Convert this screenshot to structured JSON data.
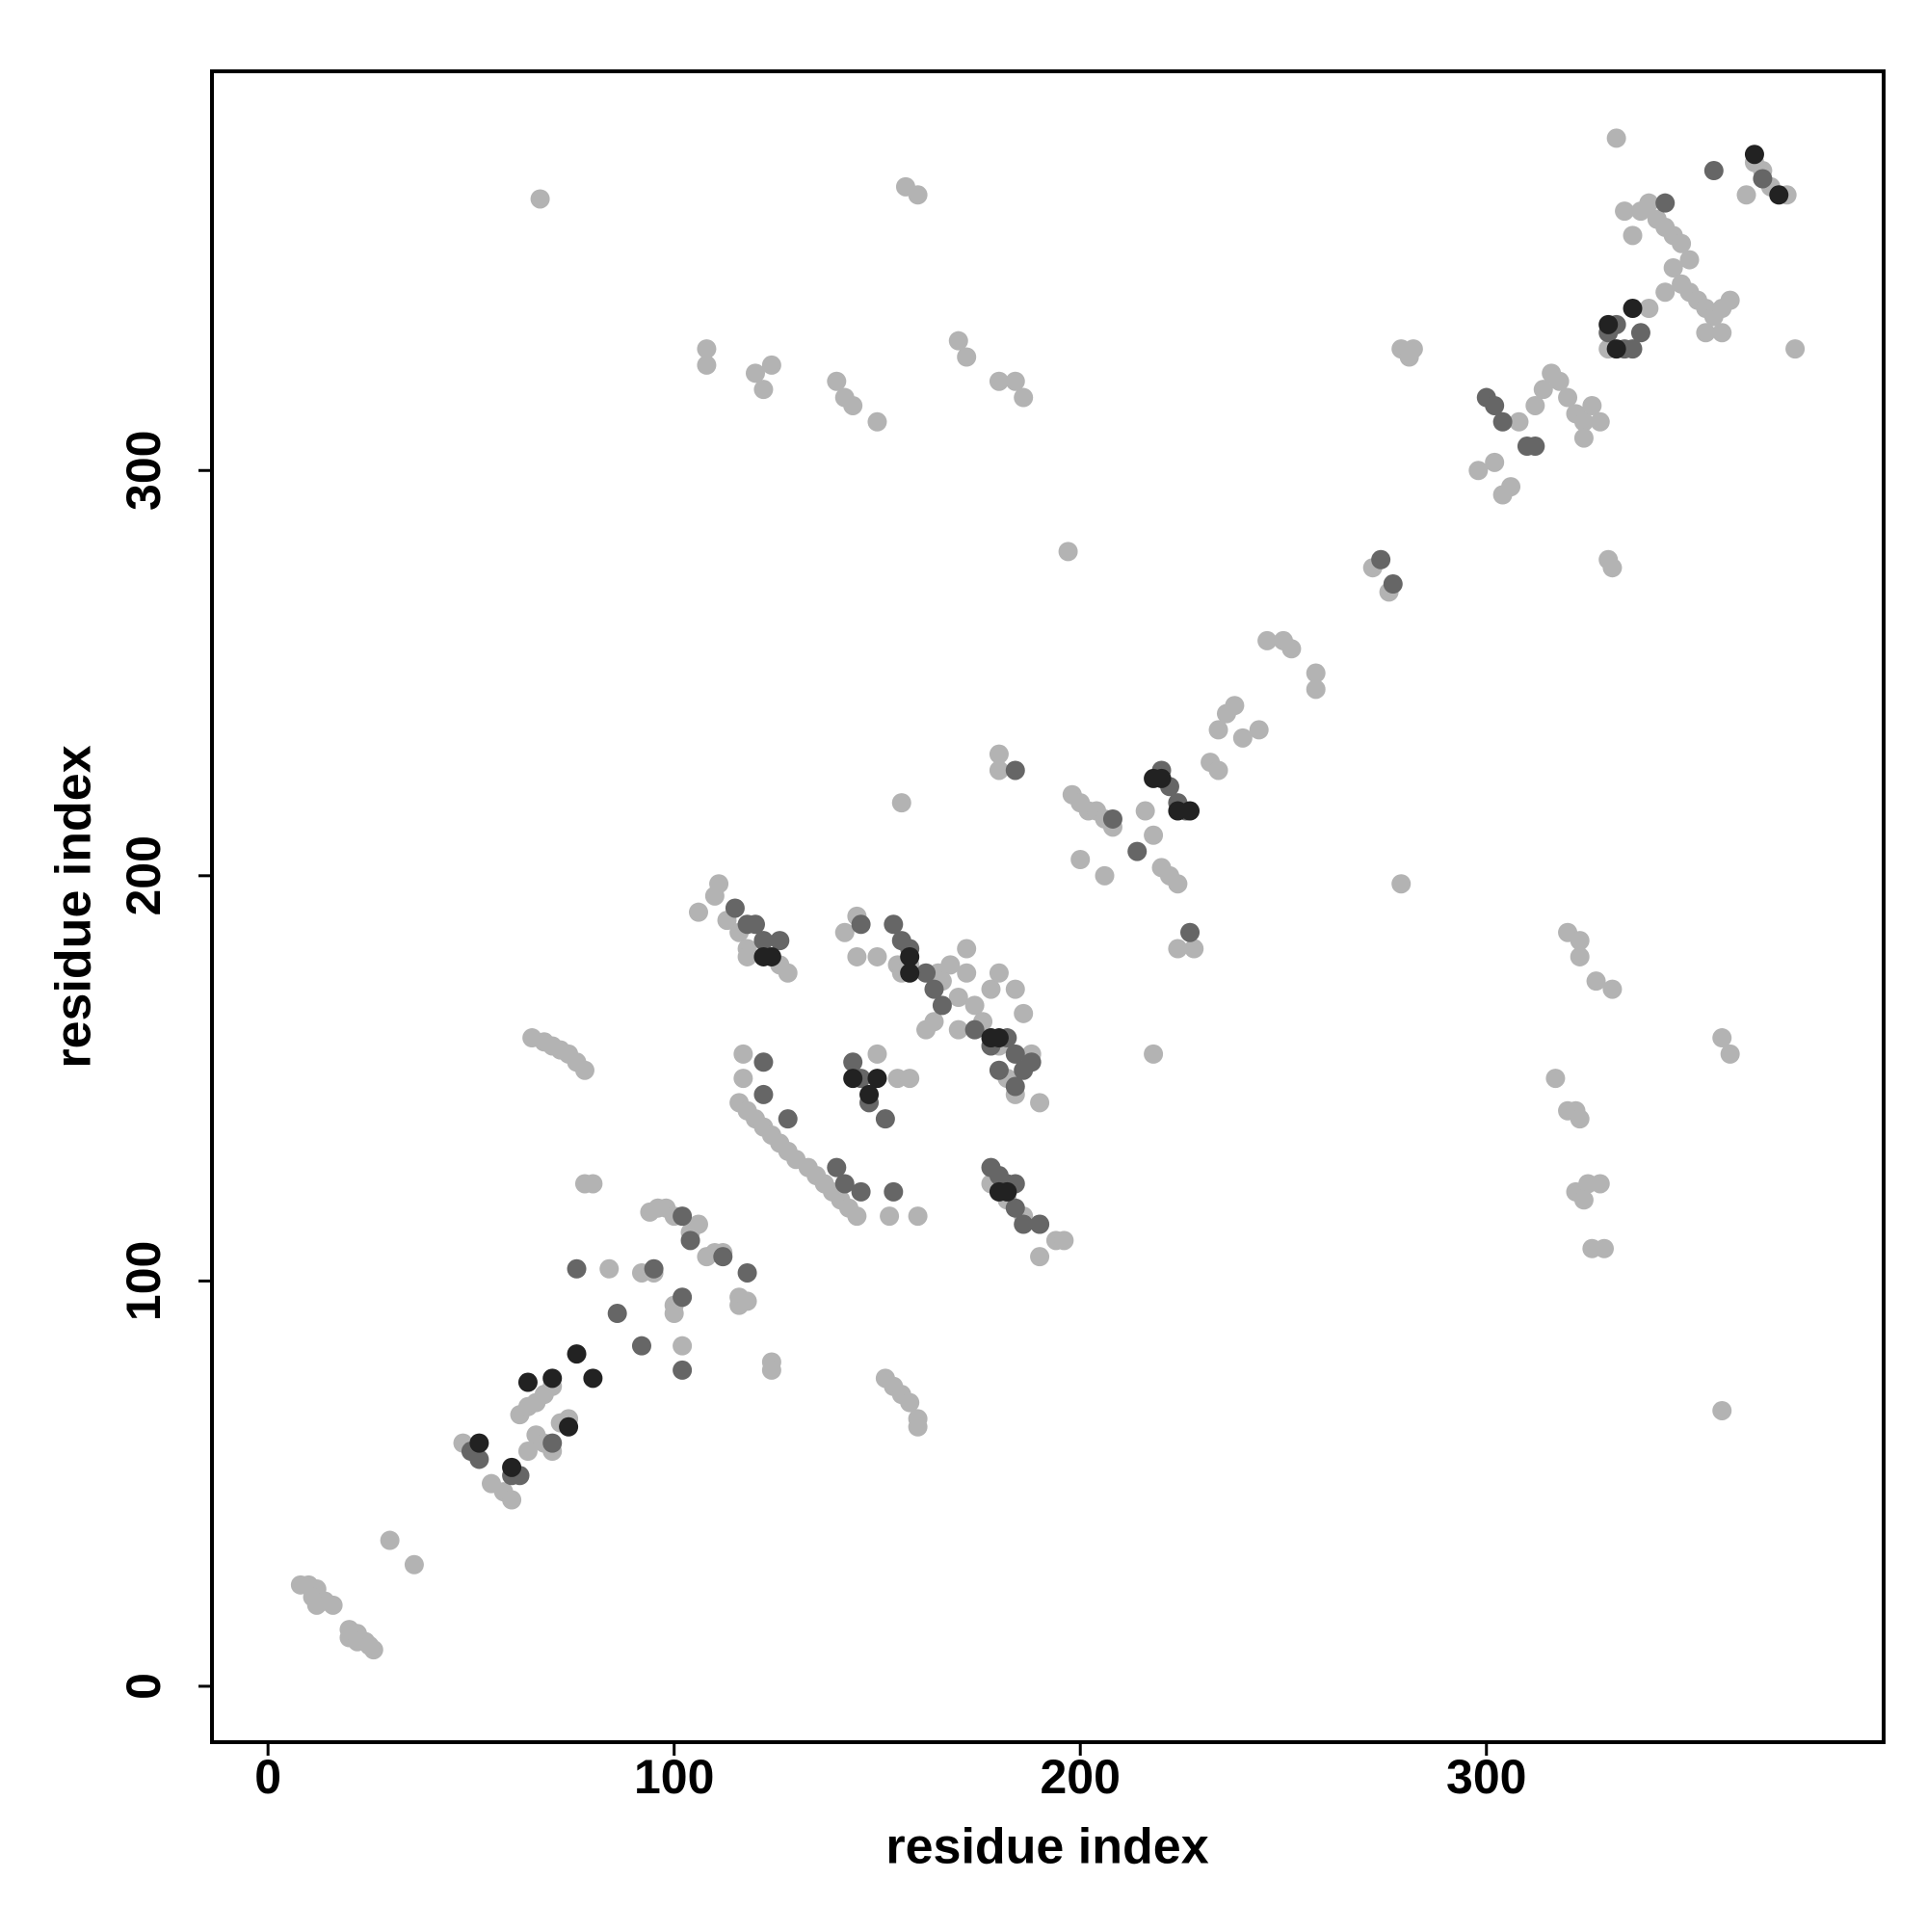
{
  "chart_data": {
    "type": "scatter",
    "x_label": "residue index",
    "y_label": "residue index",
    "xlim": [
      -13.8,
      397.8
    ],
    "ylim": [
      -13.8,
      398.5
    ],
    "xticks": [
      0,
      100,
      200,
      300
    ],
    "yticks": [
      0,
      100,
      200,
      300
    ],
    "grid": false,
    "series": [
      {
        "color": "#b3b3b3",
        "x": [
          8,
          10,
          12,
          11,
          14,
          16,
          12,
          20,
          22,
          24,
          26,
          20,
          22,
          25,
          30,
          36,
          48,
          50,
          55,
          58,
          60,
          62,
          64,
          66,
          68,
          70,
          66,
          68,
          72,
          74,
          70,
          64,
          65,
          68,
          70,
          72,
          74,
          76,
          78,
          67,
          78,
          80,
          84,
          92,
          95,
          94,
          96,
          98,
          100,
          100,
          100,
          102,
          104,
          106,
          108,
          110,
          112,
          116,
          116,
          118,
          124,
          124,
          106,
          110,
          111,
          113,
          116,
          118,
          118,
          122,
          126,
          128,
          117,
          117,
          116,
          118,
          120,
          122,
          124,
          126,
          128,
          130,
          133,
          135,
          137,
          139,
          141,
          143,
          145,
          142,
          145,
          145,
          150,
          155,
          156,
          158,
          165,
          168,
          172,
          172,
          166,
          170,
          174,
          176,
          178,
          180,
          170,
          162,
          164,
          150,
          155,
          158,
          153,
          160,
          152,
          154,
          156,
          158,
          160,
          160,
          157,
          160,
          170,
          172,
          180,
          184,
          186,
          140,
          142,
          144,
          150,
          108,
          108,
          120,
          122,
          124,
          178,
          182,
          186,
          190,
          194,
          196,
          190,
          178,
          180,
          184,
          186,
          182,
          184,
          190,
          188,
          197,
          198,
          200,
          202,
          204,
          206,
          208,
          200,
          206,
          216,
          218,
          220,
          222,
          224,
          228,
          224,
          218,
          180,
          180,
          156,
          234,
          236,
          238,
          240,
          244,
          232,
          234,
          246,
          250,
          252,
          258,
          258,
          279,
          281,
          282,
          272,
          276,
          279,
          298,
          302,
          304,
          306,
          308,
          312,
          314,
          316,
          318,
          320,
          322,
          324,
          326,
          328,
          324,
          330,
          331,
          320,
          323,
          323,
          327,
          331,
          317,
          320,
          322,
          323,
          322,
          325,
          328,
          324,
          326,
          329,
          332,
          334,
          338,
          340,
          342,
          344,
          346,
          348,
          350,
          346,
          348,
          350,
          352,
          354,
          356,
          358,
          360,
          340,
          344,
          336,
          354,
          358,
          330,
          358,
          360,
          358,
          366,
          368,
          370,
          372,
          374,
          364,
          376
        ],
        "values": [
          25,
          25,
          24,
          22,
          21,
          20,
          20,
          14,
          13,
          11,
          9,
          12,
          11,
          10,
          36,
          30,
          60,
          58,
          50,
          48,
          46,
          67,
          69,
          70,
          72,
          74,
          62,
          60,
          65,
          66,
          58,
          58,
          160,
          159,
          158,
          157,
          156,
          154,
          152,
          367,
          124,
          124,
          103,
          102,
          102,
          117,
          118,
          118,
          116,
          94,
          92,
          84,
          112,
          114,
          106,
          107,
          107,
          96,
          94,
          95,
          80,
          78,
          191,
          195,
          198,
          189,
          186,
          182,
          180,
          184,
          178,
          176,
          156,
          150,
          144,
          142,
          140,
          138,
          136,
          134,
          132,
          130,
          128,
          126,
          124,
          122,
          120,
          118,
          116,
          186,
          180,
          190,
          180,
          178,
          176,
          178,
          176,
          178,
          182,
          176,
          174,
          170,
          168,
          164,
          160,
          158,
          162,
          162,
          164,
          156,
          150,
          150,
          116,
          116,
          76,
          74,
          72,
          70,
          66,
          64,
          370,
          368,
          332,
          328,
          322,
          322,
          318,
          322,
          318,
          316,
          312,
          330,
          326,
          324,
          320,
          326,
          124,
          120,
          116,
          114,
          110,
          110,
          106,
          172,
          176,
          172,
          166,
          150,
          146,
          144,
          156,
          280,
          220,
          218,
          216,
          216,
          214,
          212,
          204,
          200,
          216,
          210,
          202,
          200,
          198,
          182,
          182,
          156,
          230,
          226,
          218,
          236,
          240,
          242,
          234,
          236,
          228,
          226,
          258,
          258,
          256,
          250,
          246,
          330,
          328,
          330,
          276,
          270,
          198,
          300,
          302,
          294,
          296,
          312,
          316,
          320,
          324,
          322,
          318,
          314,
          312,
          316,
          312,
          308,
          278,
          276,
          186,
          184,
          180,
          174,
          172,
          150,
          142,
          142,
          140,
          122,
          124,
          124,
          120,
          108,
          108,
          382,
          364,
          364,
          366,
          362,
          360,
          358,
          356,
          352,
          350,
          346,
          344,
          342,
          340,
          338,
          340,
          342,
          340,
          344,
          358,
          334,
          334,
          330,
          160,
          156,
          68,
          376,
          374,
          370,
          368,
          368,
          368,
          330
        ]
      },
      {
        "color": "#666666",
        "x": [
          50,
          52,
          60,
          62,
          70,
          76,
          86,
          92,
          95,
          102,
          102,
          102,
          104,
          112,
          118,
          115,
          118,
          120,
          122,
          126,
          122,
          122,
          128,
          140,
          142,
          146,
          146,
          144,
          146,
          148,
          152,
          154,
          156,
          158,
          162,
          164,
          166,
          174,
          178,
          182,
          184,
          186,
          188,
          184,
          180,
          178,
          180,
          182,
          184,
          184,
          186,
          190,
          154,
          208,
          214,
          220,
          222,
          224,
          226,
          227,
          184,
          274,
          277,
          300,
          302,
          304,
          310,
          312,
          330,
          332,
          334,
          336,
          338,
          344,
          356,
          368
        ],
        "values": [
          58,
          56,
          52,
          52,
          60,
          103,
          92,
          84,
          103,
          116,
          96,
          78,
          110,
          106,
          102,
          192,
          188,
          188,
          184,
          184,
          154,
          146,
          140,
          128,
          124,
          122,
          188,
          154,
          150,
          144,
          140,
          188,
          184,
          182,
          176,
          172,
          168,
          162,
          158,
          160,
          156,
          152,
          154,
          148,
          152,
          128,
          126,
          124,
          124,
          118,
          114,
          114,
          122,
          214,
          206,
          226,
          222,
          218,
          216,
          186,
          226,
          278,
          272,
          318,
          316,
          312,
          306,
          306,
          334,
          336,
          330,
          330,
          334,
          366,
          374,
          372
        ]
      },
      {
        "color": "#222222",
        "x": [
          52,
          60,
          64,
          70,
          76,
          80,
          74,
          122,
          124,
          144,
          148,
          150,
          158,
          158,
          178,
          180,
          182,
          180,
          218,
          220,
          224,
          227,
          336,
          330,
          366,
          372,
          332
        ],
        "values": [
          60,
          54,
          75,
          76,
          82,
          76,
          64,
          180,
          180,
          150,
          146,
          150,
          180,
          176,
          160,
          160,
          122,
          122,
          224,
          224,
          216,
          216,
          340,
          336,
          378,
          368,
          330
        ]
      }
    ]
  }
}
